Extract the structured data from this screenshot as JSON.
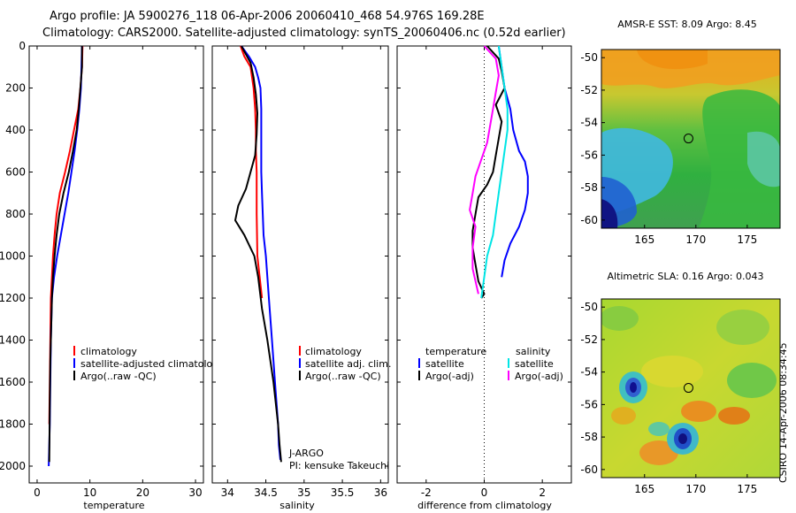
{
  "header": {
    "line1": "Argo profile: JA 5900276_118 06-Apr-2006 20060410_468 54.976S 169.28E",
    "line2": "Climatology: CARS2000. Satellite-adjusted climatology: synTS_20060406.nc (0.52d earlier)"
  },
  "side_stamp": "CSIRO 14-Apr-2006 08:34:45",
  "colors": {
    "red": "#ff0000",
    "blue": "#0000ff",
    "black": "#000000",
    "cyan": "#00e5e5",
    "magenta": "#ff00ff"
  },
  "chart_data": [
    {
      "type": "line",
      "id": "temperature",
      "xlabel": "temperature",
      "ylabel": "",
      "xlim": [
        -1.5,
        31.5
      ],
      "ylim": [
        2080,
        0
      ],
      "xticks": [
        "0",
        "10",
        "20",
        "30"
      ],
      "yticks": [
        "0",
        "200",
        "400",
        "600",
        "800",
        "1000",
        "1200",
        "1400",
        "1600",
        "1800",
        "2000"
      ],
      "legend": [
        "climatology",
        "satellite-adjusted climatology",
        "Argo(..raw -QC)"
      ],
      "series": [
        {
          "name": "climatology",
          "color": "red",
          "x": [
            8.6,
            8.5,
            8.2,
            7.8,
            7.0,
            6.2,
            5.3,
            4.3,
            3.7,
            3.3,
            3.0,
            2.8,
            2.6,
            2.5,
            2.4,
            2.3
          ],
          "y": [
            0,
            100,
            200,
            300,
            400,
            500,
            600,
            700,
            800,
            900,
            1000,
            1100,
            1200,
            1400,
            1600,
            1800
          ]
        },
        {
          "name": "satellite-adjusted climatology",
          "color": "blue",
          "x": [
            8.5,
            8.4,
            8.3,
            8.0,
            7.6,
            7.1,
            6.5,
            5.9,
            5.2,
            4.5,
            3.8,
            3.2,
            2.8,
            2.6,
            2.5,
            2.4,
            2.3,
            2.2
          ],
          "y": [
            0,
            100,
            200,
            300,
            400,
            500,
            600,
            700,
            800,
            900,
            1000,
            1100,
            1200,
            1400,
            1600,
            1800,
            1900,
            2000
          ]
        },
        {
          "name": "Argo(..raw -QC)",
          "color": "black",
          "x": [
            8.5,
            8.5,
            8.2,
            7.9,
            7.5,
            6.8,
            6.0,
            5.0,
            4.2,
            3.7,
            3.3,
            3.0,
            2.8,
            2.7,
            2.5,
            2.4,
            2.3
          ],
          "y": [
            0,
            100,
            200,
            300,
            400,
            500,
            600,
            700,
            800,
            900,
            1000,
            1100,
            1200,
            1300,
            1500,
            1700,
            1980
          ]
        }
      ]
    },
    {
      "type": "line",
      "id": "salinity",
      "xlabel": "salinity",
      "ylabel": "",
      "xlim": [
        33.8,
        36.1
      ],
      "ylim": [
        2080,
        0
      ],
      "xticks": [
        "34",
        "34.5",
        "35",
        "35.5",
        "36"
      ],
      "legend": [
        "climatology",
        "satellite adj. clim.",
        "Argo(..raw -QC)"
      ],
      "annotation": [
        "J-ARGO",
        "PI: kensuke Takeuchi"
      ],
      "series": [
        {
          "name": "climatology",
          "color": "red",
          "x": [
            34.17,
            34.22,
            34.3,
            34.34,
            34.36,
            34.37,
            34.37,
            34.38,
            34.38,
            34.39,
            34.42,
            34.45
          ],
          "y": [
            0,
            50,
            100,
            200,
            300,
            400,
            500,
            600,
            800,
            1000,
            1100,
            1200
          ]
        },
        {
          "name": "satellite adj. clim.",
          "color": "blue",
          "x": [
            34.18,
            34.28,
            34.36,
            34.4,
            34.43,
            34.44,
            34.44,
            34.44,
            34.44,
            34.45,
            34.46,
            34.47,
            34.5,
            34.54,
            34.58,
            34.62,
            34.66,
            34.67,
            34.69
          ],
          "y": [
            0,
            50,
            100,
            150,
            200,
            300,
            400,
            500,
            600,
            700,
            800,
            900,
            1000,
            1200,
            1400,
            1600,
            1800,
            1900,
            1970
          ]
        },
        {
          "name": "Argo(..raw -QC)",
          "color": "black",
          "x": [
            34.18,
            34.24,
            34.3,
            34.34,
            34.37,
            34.39,
            34.38,
            34.36,
            34.3,
            34.24,
            34.14,
            34.1,
            34.22,
            34.35,
            34.4,
            34.45,
            34.52,
            34.6,
            34.66,
            34.68,
            34.7
          ],
          "y": [
            0,
            40,
            80,
            150,
            230,
            320,
            420,
            520,
            600,
            680,
            760,
            830,
            900,
            1000,
            1100,
            1250,
            1400,
            1600,
            1800,
            1900,
            1980
          ]
        }
      ]
    },
    {
      "type": "line",
      "id": "difference",
      "xlabel": "difference from climatology",
      "ylabel": "",
      "xlim": [
        -3,
        3
      ],
      "ylim": [
        2080,
        0
      ],
      "xticks": [
        "-2",
        "0",
        "2"
      ],
      "legend_temperature": {
        "heading": "temperature",
        "items": [
          "satellite",
          "Argo(-adj)"
        ]
      },
      "legend_salinity": {
        "heading": "salinity",
        "items": [
          "satellite",
          "Argo(-adj)"
        ]
      },
      "series": [
        {
          "name": "temperature satellite",
          "color": "blue",
          "x": [
            0.5,
            0.6,
            0.7,
            0.9,
            1.0,
            1.2,
            1.4,
            1.5,
            1.5,
            1.4,
            1.2,
            0.9,
            0.7,
            0.6
          ],
          "y": [
            0,
            100,
            200,
            300,
            400,
            500,
            550,
            620,
            700,
            780,
            860,
            940,
            1020,
            1100
          ]
        },
        {
          "name": "temperature Argo(-adj)",
          "color": "black",
          "x": [
            0.1,
            0.5,
            0.6,
            0.7,
            0.4,
            0.6,
            0.5,
            0.4,
            0.3,
            0.1,
            -0.2,
            -0.3,
            -0.4,
            -0.4,
            -0.3,
            -0.2,
            0.0,
            -0.1
          ],
          "y": [
            0,
            60,
            120,
            200,
            280,
            360,
            440,
            520,
            600,
            660,
            720,
            800,
            880,
            960,
            1040,
            1120,
            1180,
            1200
          ]
        },
        {
          "name": "salinity satellite",
          "color": "cyan",
          "x": [
            0.5,
            0.6,
            0.7,
            0.8,
            0.8,
            0.7,
            0.6,
            0.5,
            0.4,
            0.3,
            0.1,
            0.0,
            -0.1
          ],
          "y": [
            0,
            100,
            200,
            300,
            400,
            500,
            600,
            700,
            800,
            900,
            1000,
            1100,
            1200
          ]
        },
        {
          "name": "salinity Argo(-adj)",
          "color": "magenta",
          "x": [
            0.0,
            0.4,
            0.5,
            0.4,
            0.3,
            0.2,
            0.1,
            -0.1,
            -0.3,
            -0.4,
            -0.5,
            -0.3,
            -0.4,
            -0.4,
            -0.2
          ],
          "y": [
            0,
            60,
            140,
            220,
            300,
            380,
            460,
            540,
            620,
            700,
            780,
            860,
            960,
            1060,
            1180
          ]
        }
      ]
    },
    {
      "type": "heatmap",
      "id": "sst",
      "title": "AMSR-E SST: 8.09 Argo: 8.45",
      "xlim": [
        160.8,
        178.2
      ],
      "ylim": [
        -60.5,
        -49.5
      ],
      "xticks": [
        "165",
        "170",
        "175"
      ],
      "yticks": [
        "-50",
        "-52",
        "-54",
        "-56",
        "-58",
        "-60"
      ],
      "marker": {
        "lon": 169.28,
        "lat": -54.976
      }
    },
    {
      "type": "heatmap",
      "id": "sla",
      "title": "Altimetric SLA: 0.16 Argo: 0.043",
      "xlim": [
        160.8,
        178.2
      ],
      "ylim": [
        -60.5,
        -49.5
      ],
      "xticks": [
        "165",
        "170",
        "175"
      ],
      "yticks": [
        "-50",
        "-52",
        "-54",
        "-56",
        "-58",
        "-60"
      ],
      "marker": {
        "lon": 169.28,
        "lat": -54.976
      }
    }
  ]
}
